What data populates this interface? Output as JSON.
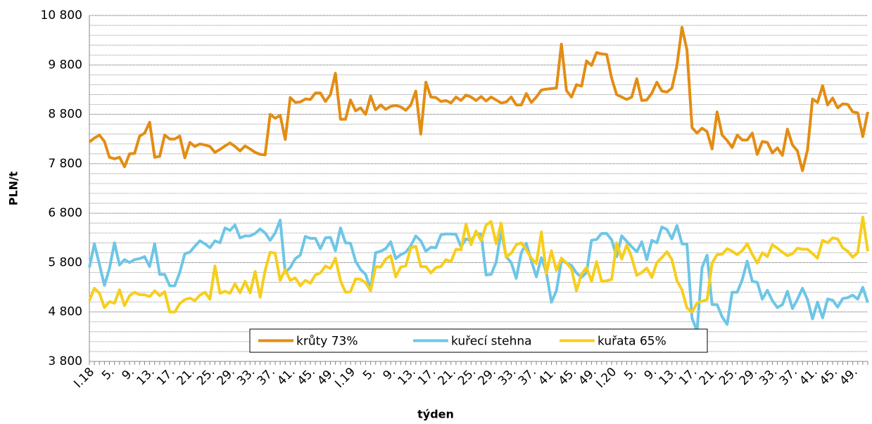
{
  "chart_data": {
    "type": "line",
    "x_label": "týden",
    "y_label": "PLN/t",
    "categories": [
      "I.18",
      null,
      null,
      null,
      "5.",
      null,
      null,
      null,
      "9.",
      null,
      null,
      null,
      "13.",
      null,
      null,
      null,
      "17.",
      null,
      null,
      null,
      "21.",
      null,
      null,
      null,
      "25.",
      null,
      null,
      null,
      "29.",
      null,
      null,
      null,
      "33.",
      null,
      null,
      null,
      "37.",
      null,
      null,
      null,
      "41.",
      null,
      null,
      null,
      "45.",
      null,
      null,
      null,
      "49.",
      null,
      null,
      null,
      "I.19",
      null,
      null,
      null,
      "5.",
      null,
      null,
      null,
      "9.",
      null,
      null,
      null,
      "13.",
      null,
      null,
      null,
      "17.",
      null,
      null,
      null,
      "21.",
      null,
      null,
      null,
      "25.",
      null,
      null,
      null,
      "29.",
      null,
      null,
      null,
      "33.",
      null,
      null,
      null,
      "37.",
      null,
      null,
      null,
      "41.",
      null,
      null,
      null,
      "45.",
      null,
      null,
      null,
      "49.",
      null,
      null,
      null,
      "I.20",
      null,
      null,
      null,
      "5.",
      null,
      null,
      null,
      "9.",
      null,
      null,
      null,
      "13.",
      null,
      null,
      null,
      "17.",
      null,
      null,
      null,
      "21.",
      null,
      null,
      null,
      "25.",
      null,
      null,
      null,
      "29.",
      null,
      null,
      null,
      "33.",
      null,
      null,
      null,
      "37.",
      null,
      null,
      null,
      "41.",
      null,
      null,
      null,
      "45.",
      null,
      null,
      null,
      "49.",
      null,
      null,
      null
    ],
    "series": [
      {
        "name": "krůty 73%",
        "color": "#e38d14",
        "values": [
          8240,
          8320,
          8380,
          8250,
          7930,
          7900,
          7930,
          7740,
          8000,
          8010,
          8360,
          8420,
          8640,
          7930,
          7950,
          8380,
          8300,
          8300,
          8360,
          7920,
          8230,
          8150,
          8200,
          8180,
          8150,
          8030,
          8090,
          8160,
          8220,
          8150,
          8060,
          8160,
          8100,
          8030,
          7990,
          7980,
          8800,
          8720,
          8780,
          8290,
          9140,
          9040,
          9050,
          9110,
          9100,
          9230,
          9230,
          9060,
          9200,
          9630,
          8700,
          8700,
          9090,
          8870,
          8930,
          8800,
          9170,
          8890,
          8990,
          8900,
          8960,
          8980,
          8950,
          8880,
          8990,
          9270,
          8400,
          9450,
          9150,
          9140,
          9060,
          9080,
          9030,
          9150,
          9080,
          9190,
          9150,
          9080,
          9160,
          9070,
          9150,
          9090,
          9030,
          9050,
          9150,
          8990,
          8990,
          9220,
          9040,
          9150,
          9290,
          9310,
          9320,
          9330,
          10220,
          9280,
          9150,
          9400,
          9370,
          9880,
          9790,
          10050,
          10020,
          10010,
          9530,
          9200,
          9150,
          9100,
          9150,
          9520,
          9080,
          9090,
          9230,
          9450,
          9270,
          9250,
          9330,
          9790,
          10560,
          10100,
          8530,
          8420,
          8520,
          8450,
          8100,
          8850,
          8380,
          8270,
          8130,
          8380,
          8280,
          8280,
          8420,
          7990,
          8250,
          8230,
          8020,
          8120,
          7970,
          8500,
          8180,
          8060,
          7660,
          8080,
          9110,
          9040,
          9380,
          8990,
          9130,
          8930,
          9010,
          9000,
          8850,
          8830,
          8350,
          8850
        ]
      },
      {
        "name": "kuřecí stehna",
        "color": "#6ec6e6",
        "values": [
          5700,
          6180,
          5760,
          5340,
          5680,
          6200,
          5750,
          5860,
          5800,
          5860,
          5880,
          5920,
          5720,
          6180,
          5560,
          5560,
          5330,
          5330,
          5600,
          5980,
          6010,
          6130,
          6240,
          6180,
          6100,
          6240,
          6200,
          6500,
          6450,
          6560,
          6300,
          6340,
          6340,
          6390,
          6480,
          6400,
          6250,
          6400,
          6660,
          5600,
          5700,
          5880,
          5950,
          6330,
          6290,
          6290,
          6080,
          6300,
          6310,
          6040,
          6500,
          6200,
          6190,
          5830,
          5660,
          5560,
          5260,
          6000,
          6030,
          6080,
          6220,
          5880,
          5960,
          6010,
          6140,
          6340,
          6240,
          6030,
          6110,
          6100,
          6360,
          6380,
          6380,
          6370,
          6120,
          6280,
          6240,
          6390,
          6380,
          5550,
          5560,
          5810,
          6440,
          5920,
          5800,
          5480,
          6000,
          6190,
          5840,
          5510,
          5900,
          5600,
          5000,
          5230,
          5840,
          5790,
          5740,
          5590,
          5500,
          5600,
          6250,
          6270,
          6390,
          6390,
          6260,
          5920,
          6340,
          6230,
          6120,
          6020,
          6220,
          5860,
          6250,
          6200,
          6520,
          6470,
          6280,
          6550,
          6180,
          6170,
          4670,
          4420,
          5700,
          5950,
          4950,
          4950,
          4700,
          4550,
          5200,
          5200,
          5450,
          5830,
          5420,
          5400,
          5060,
          5240,
          5030,
          4890,
          4950,
          5220,
          4870,
          5060,
          5280,
          5050,
          4660,
          5000,
          4680,
          5060,
          5040,
          4900,
          5070,
          5090,
          5140,
          5060,
          5300,
          4990
        ]
      },
      {
        "name": "kuřata 65%",
        "color": "#f7ce1d",
        "values": [
          5030,
          5280,
          5180,
          4890,
          5010,
          4980,
          5250,
          4930,
          5130,
          5200,
          5150,
          5150,
          5110,
          5230,
          5130,
          5210,
          4800,
          4800,
          4970,
          5050,
          5080,
          5030,
          5140,
          5200,
          5060,
          5730,
          5180,
          5220,
          5180,
          5370,
          5190,
          5420,
          5190,
          5620,
          5100,
          5640,
          6010,
          5990,
          5440,
          5660,
          5440,
          5490,
          5330,
          5440,
          5380,
          5550,
          5590,
          5730,
          5680,
          5890,
          5430,
          5200,
          5210,
          5470,
          5460,
          5390,
          5230,
          5720,
          5710,
          5870,
          5940,
          5510,
          5710,
          5730,
          6100,
          6130,
          5720,
          5720,
          5590,
          5700,
          5720,
          5860,
          5820,
          6070,
          6060,
          6580,
          6160,
          6440,
          6240,
          6560,
          6630,
          6180,
          6600,
          5910,
          5990,
          6160,
          6200,
          6060,
          5890,
          5780,
          6420,
          5580,
          6040,
          5640,
          5890,
          5790,
          5670,
          5230,
          5570,
          5700,
          5420,
          5820,
          5420,
          5430,
          5460,
          6200,
          5870,
          6160,
          5900,
          5540,
          5600,
          5690,
          5500,
          5800,
          5900,
          6020,
          5860,
          5430,
          5250,
          4880,
          4800,
          4980,
          5020,
          5050,
          5790,
          5960,
          5970,
          6080,
          6030,
          5960,
          6040,
          6180,
          5970,
          5790,
          6000,
          5920,
          6160,
          6090,
          6010,
          5940,
          5980,
          6090,
          6070,
          6070,
          5980,
          5890,
          6250,
          6200,
          6300,
          6280,
          6100,
          6030,
          5910,
          6000,
          6720,
          6030
        ]
      }
    ],
    "ylim": [
      3800,
      10800
    ],
    "yticks": [
      {
        "value": 3800,
        "label": "3 800"
      },
      {
        "value": 4800,
        "label": "4 800"
      },
      {
        "value": 5800,
        "label": "5 800"
      },
      {
        "value": 6800,
        "label": "6 800"
      },
      {
        "value": 7800,
        "label": "7 800"
      },
      {
        "value": 8800,
        "label": "8 800"
      },
      {
        "value": 9800,
        "label": "9 800"
      },
      {
        "value": 10800,
        "label": "10 800"
      }
    ],
    "minor_yticks": [
      4000,
      4200,
      4400,
      4600,
      5000,
      5200,
      5400,
      5600,
      6000,
      6200,
      6400,
      6600,
      7000,
      7200,
      7400,
      7600,
      8000,
      8200,
      8400,
      8600,
      9000,
      9200,
      9400,
      9600,
      10000,
      10200,
      10400,
      10600
    ],
    "grid": true,
    "legend": "bottom"
  }
}
